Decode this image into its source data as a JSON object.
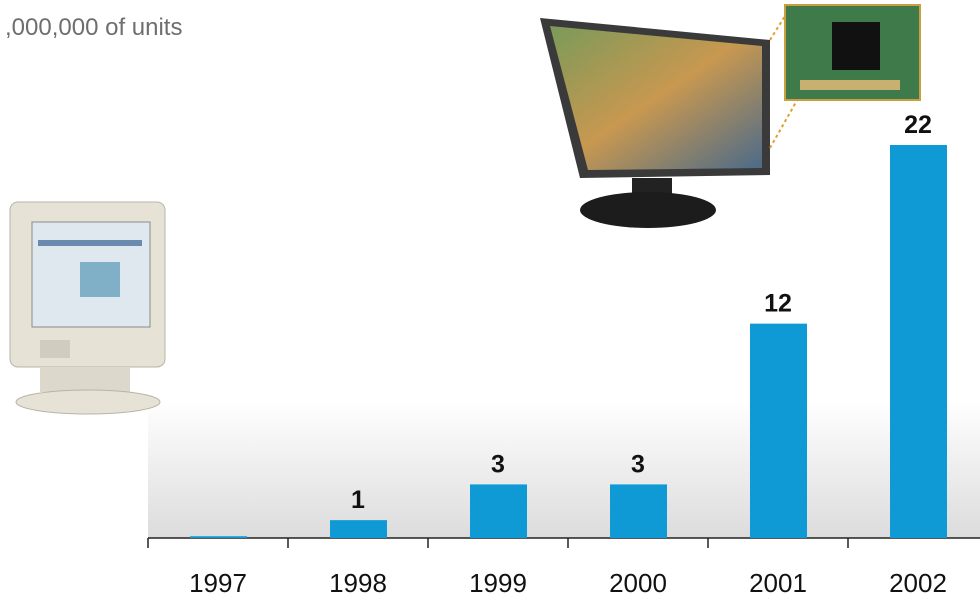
{
  "chart_data": {
    "type": "bar",
    "title": ",000,000 of units",
    "categories": [
      "1997",
      "1998",
      "1999",
      "2000",
      "2001",
      "2002"
    ],
    "values": [
      0.1,
      1,
      3,
      3,
      12,
      22
    ],
    "value_labels": [
      null,
      "1",
      "3",
      "3",
      "12",
      "22"
    ],
    "color": "#0f9ad6"
  }
}
